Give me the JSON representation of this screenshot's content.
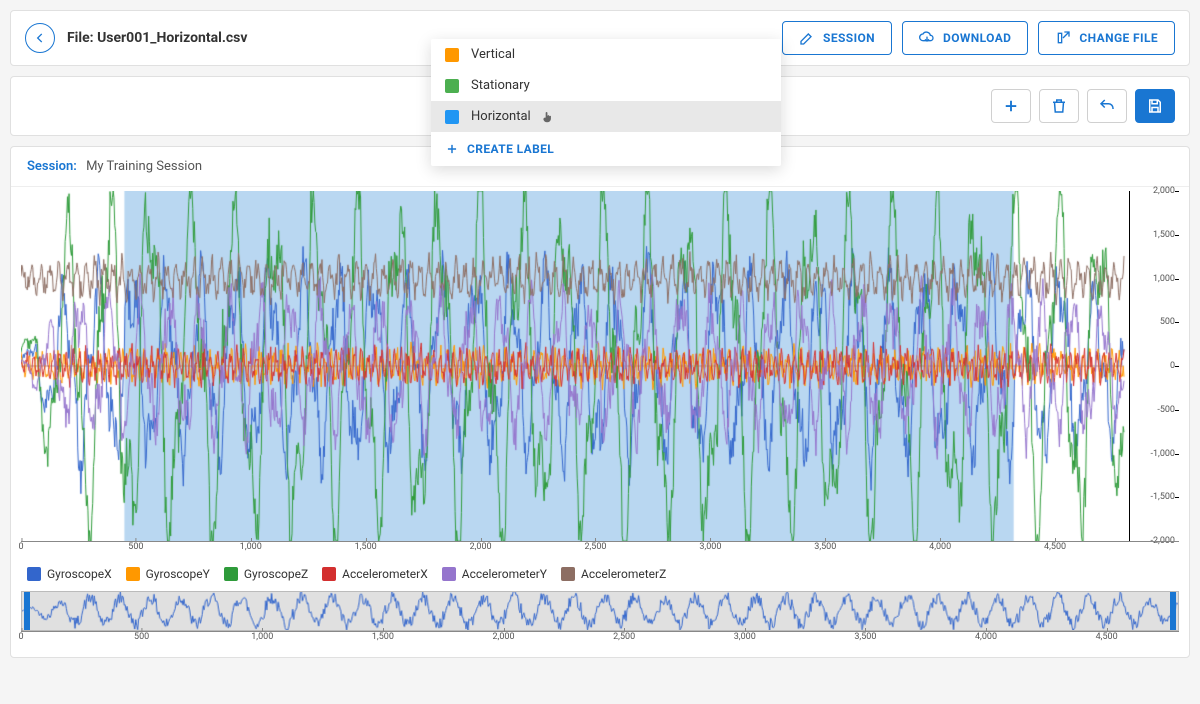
{
  "header": {
    "file_prefix": "File: ",
    "file_name": "User001_Horizontal.csv",
    "buttons": {
      "session": "SESSION",
      "download": "DOWNLOAD",
      "change_file": "CHANGE FILE"
    }
  },
  "label_dropdown": {
    "items": [
      {
        "label": "Vertical",
        "color": "#ff9800",
        "selected": false
      },
      {
        "label": "Stationary",
        "color": "#4caf50",
        "selected": false
      },
      {
        "label": "Horizontal",
        "color": "#2196f3",
        "selected": true
      }
    ],
    "create_label": "CREATE LABEL"
  },
  "session": {
    "label": "Session:",
    "value": "My Training Session"
  },
  "chart": {
    "type": "line-timeseries",
    "x_range": [
      0,
      4800
    ],
    "y_range": [
      -2000,
      2000
    ],
    "x_ticks": [
      0,
      500,
      1000,
      1500,
      2000,
      2500,
      3000,
      3500,
      4000,
      4500
    ],
    "x_tick_labels": [
      "0",
      "500",
      "1,000",
      "1,500",
      "2,000",
      "2,500",
      "3,000",
      "3,500",
      "4,000",
      "4,500"
    ],
    "y_ticks": [
      -2000,
      -1500,
      -1000,
      -500,
      0,
      500,
      1000,
      1500,
      2000
    ],
    "y_tick_labels": [
      "-2,000",
      "-1,500",
      "-1,000",
      "-500",
      "0",
      "500",
      "1,000",
      "1,500",
      "2,000"
    ],
    "selection": {
      "x_start": 450,
      "x_end": 4320,
      "fill_color": "#7fb7e6",
      "fill_opacity": 0.55
    },
    "background_color": "#ffffff",
    "right_margin": 55,
    "series": [
      {
        "name": "GyroscopeX",
        "color": "#3366cc",
        "baseline": 0,
        "amplitude": 900,
        "freq": 0.042,
        "phase": 0.1,
        "noise": 260,
        "burst": true
      },
      {
        "name": "GyroscopeY",
        "color": "#ff9800",
        "baseline": 0,
        "amplitude": 130,
        "freq": 0.2,
        "phase": 1.2,
        "noise": 110,
        "burst": false
      },
      {
        "name": "GyroscopeZ",
        "color": "#2e9b3a",
        "baseline": 0,
        "amplitude": 1650,
        "freq": 0.035,
        "phase": 0.7,
        "noise": 320,
        "burst": true
      },
      {
        "name": "AccelerometerX",
        "color": "#d32f2f",
        "baseline": 0,
        "amplitude": 140,
        "freq": 0.22,
        "phase": 2.1,
        "noise": 90,
        "burst": false
      },
      {
        "name": "AccelerometerY",
        "color": "#9575cd",
        "baseline": 0,
        "amplitude": 650,
        "freq": 0.048,
        "phase": 1.9,
        "noise": 230,
        "burst": true
      },
      {
        "name": "AccelerometerZ",
        "color": "#8d6e63",
        "baseline": 1000,
        "amplitude": 160,
        "freq": 0.16,
        "phase": 0.4,
        "noise": 110,
        "burst": false
      }
    ],
    "overview_series": {
      "color": "#3366cc",
      "baseline": 0,
      "amplitude": 14,
      "freq": 0.05,
      "noise": 7
    }
  },
  "colors": {
    "primary": "#1976d2",
    "border": "#e0e0e0"
  }
}
